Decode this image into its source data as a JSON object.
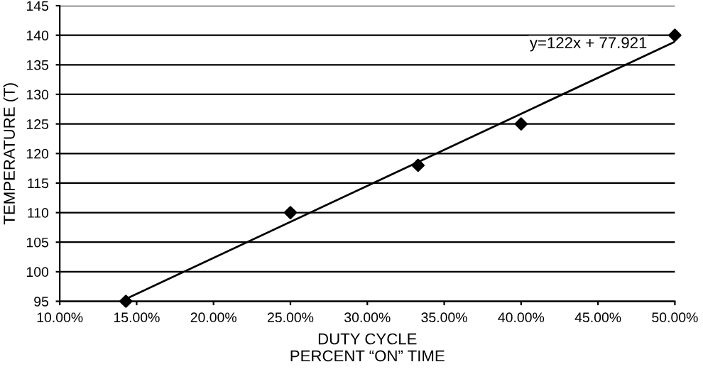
{
  "chart_data": {
    "type": "scatter",
    "xlabel": "DUTY CYCLE\nPERCENT “ON” TIME",
    "ylabel": "TEMPERATURE (T)",
    "series": [
      {
        "color": "#000000",
        "marker": "diamond",
        "x": [
          14.3,
          25,
          33.3,
          40,
          50
        ],
        "values": [
          95,
          110,
          118,
          125,
          140
        ]
      },
      {
        "type": "line",
        "color": "#000000",
        "marker": "none",
        "x": [
          14.3,
          50
        ],
        "values": [
          95.4,
          138.9
        ]
      }
    ],
    "annotations": [
      "y=122x + 77.921"
    ],
    "xlim": [
      10,
      50
    ],
    "xticks": [
      {
        "value": 10,
        "label": "10.00%"
      },
      {
        "value": 15,
        "label": "15.00%"
      },
      {
        "value": 20,
        "label": "20.00%"
      },
      {
        "value": 25,
        "label": "25.00%"
      },
      {
        "value": 30,
        "label": "30.00%"
      },
      {
        "value": 35,
        "label": "35.00%"
      },
      {
        "value": 40,
        "label": "40.00%"
      },
      {
        "value": 45,
        "label": "45.00%"
      },
      {
        "value": 50,
        "label": "50.00%"
      }
    ],
    "ylim": [
      95,
      145
    ],
    "yticks": [
      95,
      100,
      105,
      110,
      115,
      120,
      125,
      130,
      135,
      140,
      145
    ],
    "grid": "y",
    "legend": false
  }
}
